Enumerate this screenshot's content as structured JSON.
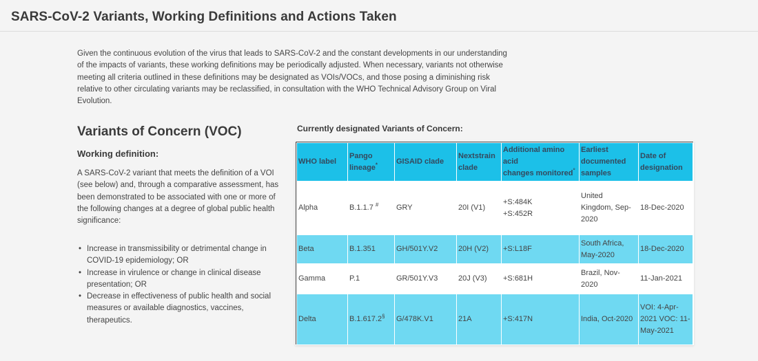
{
  "page": {
    "title": "SARS-CoV-2 Variants, Working Definitions and Actions Taken",
    "intro": "Given the continuous evolution of the virus that leads to SARS-CoV-2 and the constant developments in our understanding of the impacts of variants, these working definitions may be periodically adjusted. When necessary, variants not otherwise meeting all criteria outlined in these definitions may be designated as VOIs/VOCs, and those posing a diminishing risk relative to other circulating variants may be reclassified, in consultation with the WHO Technical Advisory Group on Viral Evolution."
  },
  "voc": {
    "heading": "Variants of Concern (VOC)",
    "working_definition_heading": "Working definition:",
    "definition_text": "A SARS-CoV-2 variant that meets the definition of a VOI (see below) and, through a comparative assessment, has been demonstrated to be associated with one or more of the following changes at a degree of global public health significance:",
    "criteria": [
      "Increase in transmissibility or detrimental change in COVID-19 epidemiology; OR",
      "Increase in virulence or change in clinical disease presentation; OR",
      "Decrease in effectiveness of public health and social measures or available diagnostics, vaccines, therapeutics."
    ]
  },
  "table": {
    "caption": "Currently designated Variants of Concern:",
    "headers": {
      "who_label": "WHO label",
      "pango": "Pango lineage",
      "pango_mark": "*",
      "gisaid": "GISAID clade",
      "nextstrain": "Nextstrain clade",
      "amino_line1": "Additional amino acid",
      "amino_line2": "changes monitored",
      "amino_mark": "°",
      "earliest": "Earliest documented samples",
      "date": "Date of designation"
    },
    "rows": [
      {
        "who_label": "Alpha",
        "pango": "B.1.1.7",
        "pango_mark": "#",
        "gisaid": "GRY",
        "nextstrain": "20I (V1)",
        "amino1": "+S:484K",
        "amino2": "+S:452R",
        "earliest": "United Kingdom, Sep-2020",
        "date": "18-Dec-2020"
      },
      {
        "who_label": "Beta",
        "pango": "B.1.351",
        "pango_mark": "",
        "gisaid": "GH/501Y.V2",
        "nextstrain": "20H (V2)",
        "amino1": "+S:L18F",
        "amino2": "",
        "earliest": "South Africa, May-2020",
        "date": "18-Dec-2020"
      },
      {
        "who_label": "Gamma",
        "pango": "P.1",
        "pango_mark": "",
        "gisaid": "GR/501Y.V3",
        "nextstrain": "20J (V3)",
        "amino1": "+S:681H",
        "amino2": "",
        "earliest": "Brazil, Nov-2020",
        "date": "11-Jan-2021"
      },
      {
        "who_label": "Delta",
        "pango": "B.1.617.2",
        "pango_mark": "§",
        "gisaid": "G/478K.V1",
        "nextstrain": "21A",
        "amino1": "+S:417N",
        "amino2": "",
        "earliest": "India, Oct-2020",
        "date": "VOI: 4-Apr-2021 VOC: 11-May-2021"
      }
    ]
  },
  "colors": {
    "header_bg": "#1cc0e8",
    "row_highlight": "#6fd9f2",
    "page_bg": "#f4f4f4",
    "text": "#444444"
  }
}
